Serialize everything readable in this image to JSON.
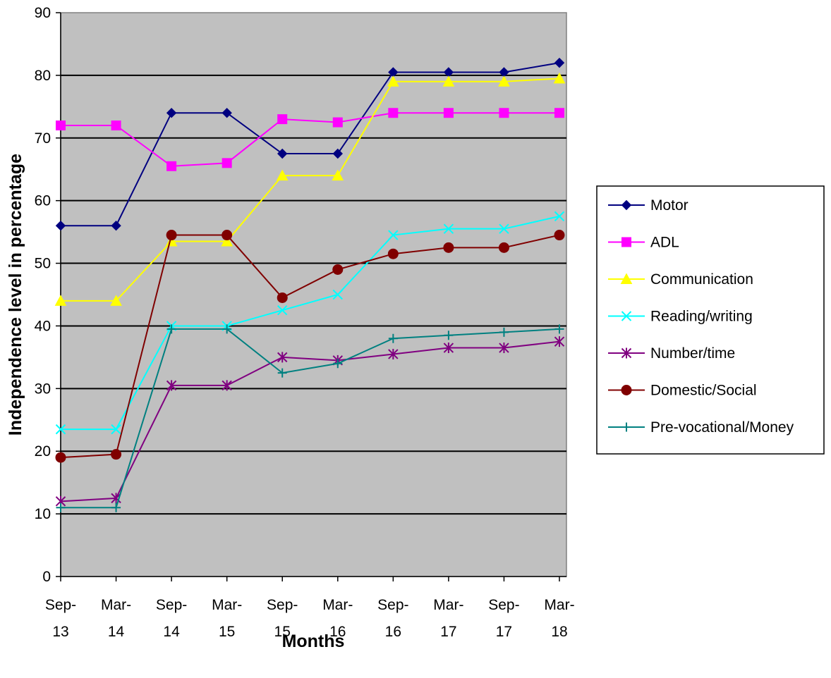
{
  "chart_data": {
    "type": "line",
    "title": "",
    "xlabel": "Months",
    "ylabel": "Independence level in percentage",
    "ylim": [
      0,
      90
    ],
    "y_ticks": [
      0,
      10,
      20,
      30,
      40,
      50,
      60,
      70,
      80,
      90
    ],
    "categories": [
      {
        "top": "Sep-",
        "bottom": "13"
      },
      {
        "top": "Mar-",
        "bottom": "14"
      },
      {
        "top": "Sep-",
        "bottom": "14"
      },
      {
        "top": "Mar-",
        "bottom": "15"
      },
      {
        "top": "Sep-",
        "bottom": "15"
      },
      {
        "top": "Mar-",
        "bottom": "16"
      },
      {
        "top": "Sep-",
        "bottom": "16"
      },
      {
        "top": "Mar-",
        "bottom": "17"
      },
      {
        "top": "Sep-",
        "bottom": "17"
      },
      {
        "top": "Mar-",
        "bottom": "18"
      }
    ],
    "grid": true,
    "plot_background": "#c0c0c0",
    "legend_position": "right",
    "series": [
      {
        "name": "Motor",
        "color": "#000080",
        "marker": "diamond",
        "values": [
          56,
          56,
          74,
          74,
          67.5,
          67.5,
          80.5,
          80.5,
          80.5,
          82
        ]
      },
      {
        "name": "ADL",
        "color": "#ff00ff",
        "marker": "square",
        "values": [
          72,
          72,
          65.5,
          66,
          73,
          72.5,
          74,
          74,
          74,
          74
        ]
      },
      {
        "name": "Communication",
        "color": "#ffff00",
        "marker": "triangle",
        "values": [
          44,
          44,
          53.5,
          53.5,
          64,
          64,
          79,
          79,
          79,
          79.5
        ]
      },
      {
        "name": "Reading/writing",
        "color": "#00ffff",
        "marker": "x",
        "values": [
          23.5,
          23.5,
          40,
          40,
          42.5,
          45,
          54.5,
          55.5,
          55.5,
          57.5
        ]
      },
      {
        "name": "Number/time",
        "color": "#800080",
        "marker": "star",
        "values": [
          12,
          12.5,
          30.5,
          30.5,
          35,
          34.5,
          35.5,
          36.5,
          36.5,
          37.5
        ]
      },
      {
        "name": "Domestic/Social",
        "color": "#800000",
        "marker": "circle",
        "values": [
          19,
          19.5,
          54.5,
          54.5,
          44.5,
          49,
          51.5,
          52.5,
          52.5,
          54.5
        ]
      },
      {
        "name": "Pre-vocational/Money",
        "color": "#008080",
        "marker": "plus",
        "values": [
          11,
          11,
          39.5,
          39.5,
          32.5,
          34,
          38,
          38.5,
          39,
          39.5
        ]
      }
    ]
  }
}
